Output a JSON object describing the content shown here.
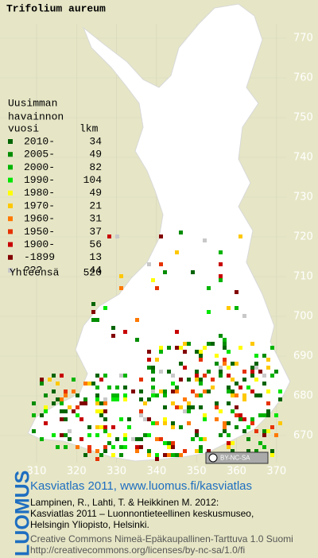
{
  "title": "Trifolium aureum",
  "legend": {
    "heading": [
      "Uusimman",
      "havainnon"
    ],
    "year_header": "vuosi",
    "count_header": "lkm",
    "rows": [
      {
        "label": "2010-",
        "count": 34,
        "color": "#006400"
      },
      {
        "label": "2005-",
        "count": 49,
        "color": "#008c00"
      },
      {
        "label": "2000-",
        "count": 82,
        "color": "#00b400"
      },
      {
        "label": "1990-",
        "count": 104,
        "color": "#00e600"
      },
      {
        "label": "1980-",
        "count": 49,
        "color": "#ffff00"
      },
      {
        "label": "1970-",
        "count": 21,
        "color": "#ffc800"
      },
      {
        "label": "1960-",
        "count": 31,
        "color": "#ff7800"
      },
      {
        "label": "1950-",
        "count": 37,
        "color": "#e63200"
      },
      {
        "label": "1900-",
        "count": 56,
        "color": "#c80000"
      },
      {
        "label": "-1899",
        "count": 13,
        "color": "#820000"
      },
      {
        "label": "???",
        "count": 44,
        "color": "#c8c8c8"
      }
    ],
    "total_label": "Yhteensä",
    "total": 520
  },
  "grid": {
    "y_labels": [
      670,
      680,
      690,
      700,
      710,
      720,
      730,
      740,
      750,
      760,
      770
    ],
    "x_labels": [
      310,
      320,
      330,
      340,
      350,
      360,
      370
    ]
  },
  "badge": "BY-NC-SA",
  "footer": {
    "logo": "LUOMUS",
    "atlas": "Kasviatlas 2011, www.luomus.fi/kasviatlas",
    "citation": [
      "Lampinen, R., Lahti, T. & Heikkinen M. 2012:",
      "Kasviatlas 2011 – Luonnontieteellinen keskusmuseo,",
      "Helsingin Yliopisto, Helsinki."
    ],
    "license": [
      "Creative Commons Nimeä-Epäkaupallinen-Tarttuva 1.0 Suomi",
      "http://creativecommons.org/licenses/by-nc-sa/1.0/fi"
    ]
  }
}
